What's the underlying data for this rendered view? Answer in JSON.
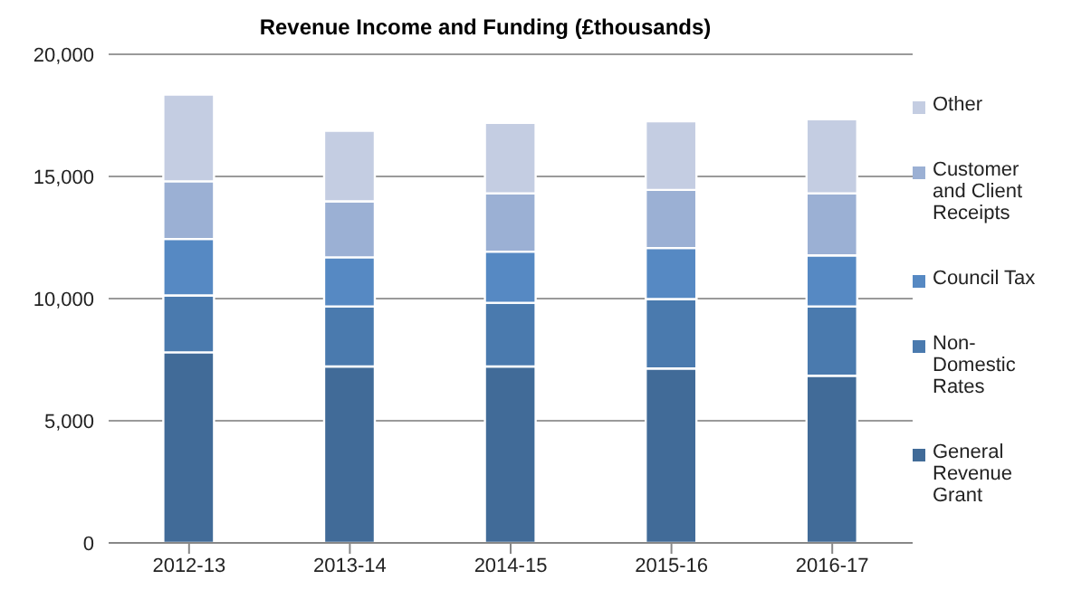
{
  "chart_data": {
    "type": "bar",
    "title": "Revenue Income and Funding (£thousands)",
    "stacked": true,
    "categories": [
      "2012-13",
      "2013-14",
      "2014-15",
      "2015-16",
      "2016-17"
    ],
    "series": [
      {
        "name": "General Revenue Grant",
        "color": "#416b98",
        "values": [
          7800,
          7220,
          7220,
          7140,
          6840
        ]
      },
      {
        "name": "Non-Domestic Rates",
        "color": "#4a7aae",
        "values": [
          2330,
          2460,
          2610,
          2840,
          2840
        ]
      },
      {
        "name": "Council Tax",
        "color": "#5689c3",
        "values": [
          2310,
          2010,
          2090,
          2090,
          2090
        ]
      },
      {
        "name": "Customer and Client Receipts",
        "color": "#9bb0d4",
        "values": [
          2360,
          2290,
          2390,
          2380,
          2540
        ]
      },
      {
        "name": "Other",
        "color": "#c4cde2",
        "values": [
          3550,
          2890,
          2880,
          2810,
          3030
        ]
      }
    ],
    "ylim": [
      0,
      20000
    ],
    "yticks": [
      {
        "value": 0,
        "label": "0"
      },
      {
        "value": 5000,
        "label": "5,000"
      },
      {
        "value": 10000,
        "label": "10,000"
      },
      {
        "value": 15000,
        "label": "15,000"
      },
      {
        "value": 20000,
        "label": "20,000"
      }
    ],
    "grid": "y",
    "legend": "right"
  }
}
